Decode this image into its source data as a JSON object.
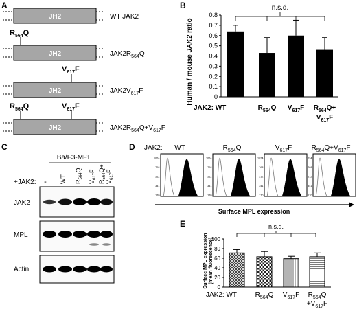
{
  "panel_a": {
    "label": "A",
    "domain_label": "JH2",
    "constructs": [
      {
        "name": "WT JAK2",
        "mutations": []
      },
      {
        "name": "JAK2R564Q",
        "mutations": [
          "R564Q"
        ]
      },
      {
        "name": "JAK2V617F",
        "mutations": [
          "V617F"
        ]
      },
      {
        "name": "JAK2R564Q+V617F",
        "mutations": [
          "R564Q",
          "V617F"
        ]
      }
    ]
  },
  "panel_b": {
    "label": "B",
    "significance": "n.s.d.",
    "x_prefix": "JAK2:",
    "chart_data": {
      "type": "bar",
      "ylabel": "Human / mouse JAK2 ratio",
      "ylim": [
        0,
        0.8
      ],
      "yticks": [
        0,
        0.1,
        0.2,
        0.3,
        0.4,
        0.5,
        0.6,
        0.7,
        0.8
      ],
      "categories": [
        "WT",
        "R564Q",
        "V617F",
        "R564Q+ V617F"
      ],
      "values": [
        0.64,
        0.43,
        0.6,
        0.46
      ],
      "errors": [
        0.06,
        0.15,
        0.15,
        0.12
      ],
      "bar_color": "#000000"
    }
  },
  "panel_c": {
    "label": "C",
    "cell_line": "Ba/F3-MPL",
    "jak2_prefix": "+JAK2:",
    "lanes": [
      "-",
      "WT",
      "R564Q",
      "V617F",
      "R564Q+ V617F"
    ],
    "blots": [
      "JAK2",
      "MPL",
      "Actin"
    ]
  },
  "panel_d": {
    "label": "D",
    "jak2_prefix": "JAK2:",
    "conditions": [
      "WT",
      "R564Q",
      "V617F",
      "R564Q+V617F"
    ],
    "yticks": [
      "1024",
      "768",
      "512",
      "341",
      "170"
    ],
    "xlabel": "Surface MPL expression"
  },
  "panel_e": {
    "label": "E",
    "significance": "n.s.d.",
    "x_prefix": "JAK2:",
    "chart_data": {
      "type": "bar",
      "ylabel": "Surface MPL expression (mean fluorescence)",
      "ylim": [
        0,
        100
      ],
      "yticks": [
        0,
        20,
        40,
        60,
        80,
        100
      ],
      "categories": [
        "WT",
        "R564Q",
        "V617F",
        "R564Q +V617F"
      ],
      "values": [
        71,
        63,
        59,
        63
      ],
      "errors": [
        7,
        11,
        5,
        8
      ]
    }
  }
}
